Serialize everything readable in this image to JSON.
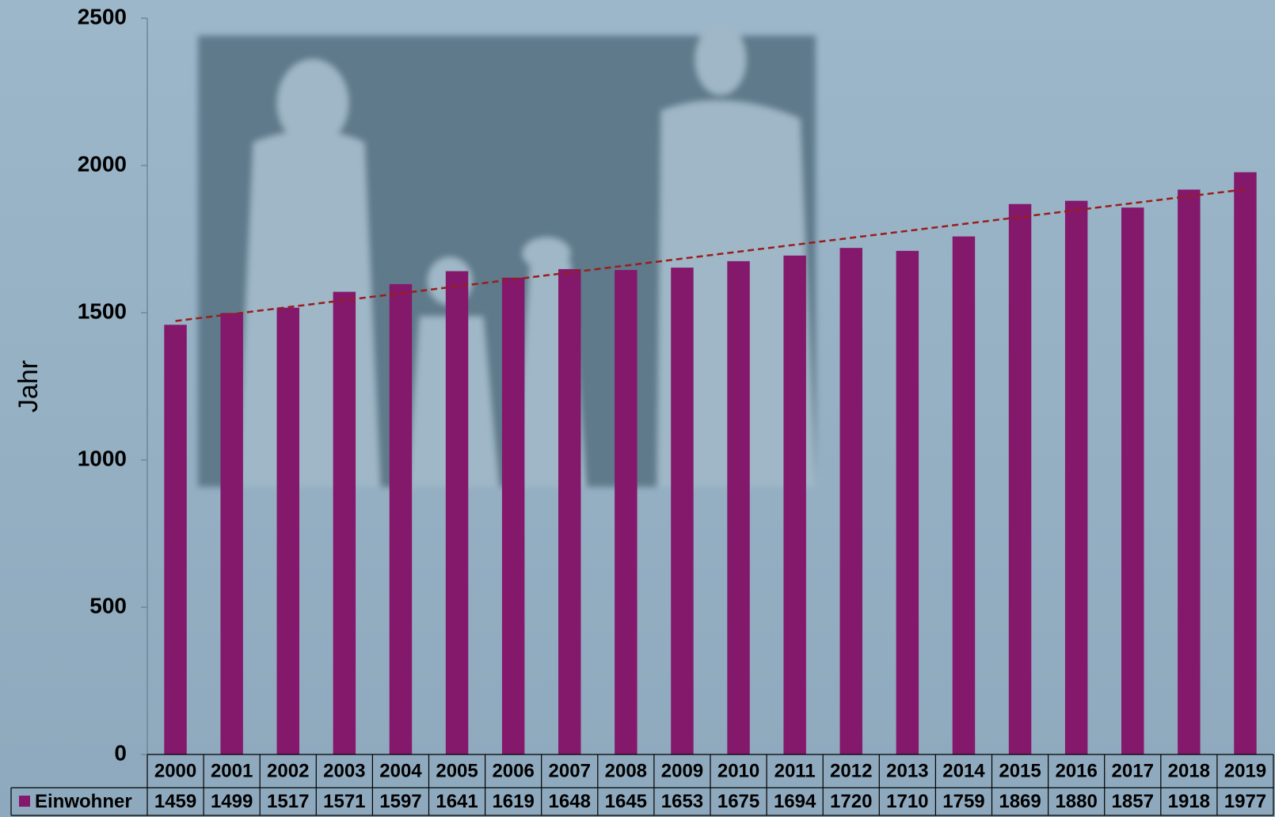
{
  "chart_data": {
    "type": "bar",
    "y_label": "Jahr",
    "categories": [
      "2000",
      "2001",
      "2002",
      "2003",
      "2004",
      "2005",
      "2006",
      "2007",
      "2008",
      "2009",
      "2010",
      "2011",
      "2012",
      "2013",
      "2014",
      "2015",
      "2016",
      "2017",
      "2018",
      "2019"
    ],
    "series": [
      {
        "name": "Einwohner",
        "color": "#84186b",
        "values": [
          1459,
          1499,
          1517,
          1571,
          1597,
          1641,
          1619,
          1648,
          1645,
          1653,
          1675,
          1694,
          1720,
          1710,
          1759,
          1869,
          1880,
          1857,
          1918,
          1977
        ]
      }
    ],
    "ylim": [
      0,
      2500
    ],
    "yticks": [
      0,
      500,
      1000,
      1500,
      2000,
      2500
    ],
    "trendline": "linear",
    "trendline_color": "#9b1c1c",
    "data_table": true
  }
}
